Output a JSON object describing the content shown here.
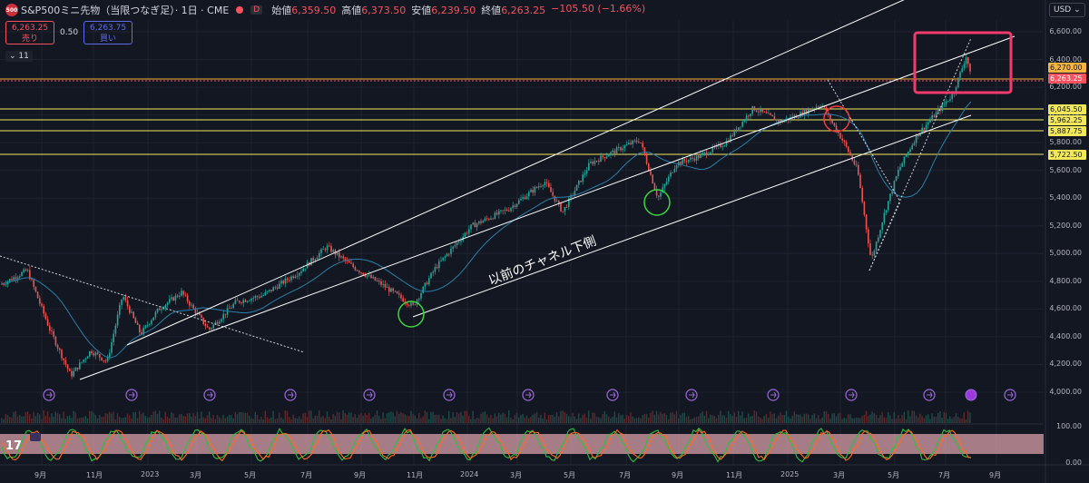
{
  "header": {
    "logo_text": "500",
    "title": "S&P500ミニ先物（当限つなぎ足）· 1日 · CME",
    "badge": "D",
    "ohlc": [
      {
        "k": "始値",
        "v": "6,359.50"
      },
      {
        "k": "高値",
        "v": "6,373.50"
      },
      {
        "k": "安値",
        "v": "6,239.50"
      },
      {
        "k": "終値",
        "v": "6,263.25"
      },
      {
        "k": "",
        "v": "−105.50 (−1.66%)"
      }
    ]
  },
  "trade": {
    "sell_price": "6,263.25",
    "sell_label": "売り",
    "spread": "0.50",
    "buy_price": "6,263.75",
    "buy_label": "買い"
  },
  "indicator_toggle": "11",
  "currency": "USD",
  "price_axis": [
    "6,600.00",
    "6,400.00",
    "6,200.00",
    "6,000.00",
    "5,800.00",
    "5,600.00",
    "5,400.00",
    "5,200.00",
    "5,000.00",
    "4,800.00",
    "4,600.00",
    "4,400.00",
    "4,200.00",
    "4,000.00"
  ],
  "horizontal_levels": [
    {
      "label": "6,270.00",
      "color": "#f5b342",
      "text_color": "#131722"
    },
    {
      "label": "6,263.25",
      "color": "#f7525f",
      "text_color": "#ffffff"
    },
    {
      "label": "6,045.50",
      "color": "#f2e85a",
      "text_color": "#131722"
    },
    {
      "label": "5,962.25",
      "color": "#f2e85a",
      "text_color": "#131722"
    },
    {
      "label": "5,887.75",
      "color": "#f2e85a",
      "text_color": "#131722"
    },
    {
      "label": "5,722.50",
      "color": "#f2e85a",
      "text_color": "#131722"
    }
  ],
  "time_axis": [
    "9月",
    "11月",
    "2023",
    "3月",
    "5月",
    "7月",
    "9月",
    "11月",
    "2024",
    "3月",
    "5月",
    "7月",
    "9月",
    "11月",
    "2025",
    "3月",
    "5月",
    "7月",
    "9月"
  ],
  "osc_axis": [
    "100.00",
    "0.00"
  ],
  "annotation": "以前のチャネル下側",
  "colors": {
    "up": "#26a69a",
    "down": "#ef5350",
    "bg": "#131722",
    "grid": "#1f2330",
    "ma": "#2a7fa8",
    "highlight": "#f23b6c"
  }
}
